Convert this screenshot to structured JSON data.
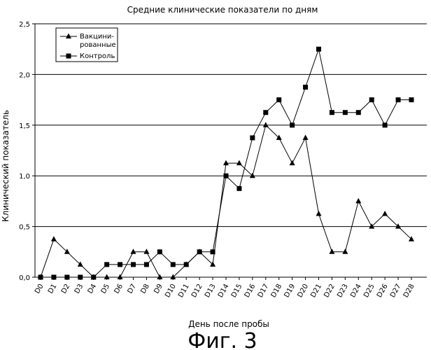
{
  "figure_label": "Фиг. 3",
  "chart_data": {
    "type": "line",
    "title": "Средние клинические показатели по дням",
    "xlabel": "День после пробы",
    "ylabel": "Клинический показатель",
    "ylim": [
      0,
      2.5
    ],
    "yticks": [
      "0,0",
      "0,5",
      "1,0",
      "1,5",
      "2,0",
      "2,5"
    ],
    "grid": true,
    "legend_position": "top-left",
    "categories": [
      "D0",
      "D1",
      "D2",
      "D3",
      "D4",
      "D5",
      "D6",
      "D7",
      "D8",
      "D9",
      "D10",
      "D11",
      "D12",
      "D13",
      "D14",
      "D15",
      "D16",
      "D17",
      "D18",
      "D19",
      "D20",
      "D21",
      "D22",
      "D23",
      "D24",
      "D25",
      "D26",
      "D27",
      "D28"
    ],
    "series": [
      {
        "name": "Вакцини-рованные",
        "legend_lines": [
          "Вакцини-",
          "рованные"
        ],
        "marker": "triangle",
        "values": [
          0,
          0.375,
          0.25,
          0.125,
          0,
          0,
          0,
          0.25,
          0.25,
          0,
          0,
          0.125,
          0.25,
          0.125,
          1.125,
          1.125,
          1.0,
          1.5,
          1.375,
          1.125,
          1.375,
          0.625,
          0.25,
          0.25,
          0.75,
          0.5,
          0.625,
          0.5,
          0.375
        ]
      },
      {
        "name": "Контроль",
        "legend_lines": [
          "Контроль"
        ],
        "marker": "square",
        "values": [
          0,
          0,
          0,
          0,
          0,
          0.125,
          0.125,
          0.125,
          0.125,
          0.25,
          0.125,
          0.125,
          0.25,
          0.25,
          1.0,
          0.875,
          1.375,
          1.625,
          1.75,
          1.5,
          1.875,
          2.25,
          1.625,
          1.625,
          1.625,
          1.75,
          1.5,
          1.75,
          1.75
        ]
      }
    ]
  }
}
